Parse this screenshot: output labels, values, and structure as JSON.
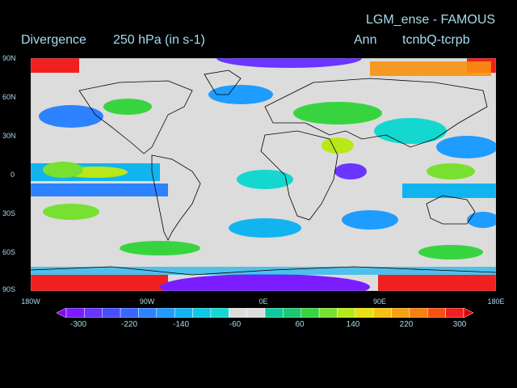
{
  "header": {
    "experiment": "LGM_ense - FAMOUS",
    "variable": "Divergence",
    "level": "250 hPa  (in s-1)",
    "period": "Ann",
    "run_diff": "tcnbQ-tcrpb"
  },
  "axes": {
    "lat_labels": [
      "90N",
      "60N",
      "30N",
      "0",
      "30S",
      "60S",
      "90S"
    ],
    "lon_labels": [
      "180W",
      "90W",
      "0E",
      "90E",
      "180E"
    ]
  },
  "colorbar": {
    "tick_labels": [
      "-300",
      "-220",
      "-140",
      "-60",
      "60",
      "140",
      "220",
      "300"
    ],
    "colors": [
      "#8a00ff",
      "#7a1cff",
      "#6a35ff",
      "#4a4cff",
      "#3a66ff",
      "#2d82ff",
      "#1e9cff",
      "#12b4f0",
      "#0ec8e6",
      "#14d8d0",
      "#dcdcdc",
      "#dcdcdc",
      "#10c8a0",
      "#1cc870",
      "#38d440",
      "#78e030",
      "#b8e818",
      "#e8e010",
      "#f8c010",
      "#f8a010",
      "#f88010",
      "#f85010",
      "#f02020",
      "#e00000"
    ],
    "neutral_color": "#dcdcdc"
  },
  "map": {
    "projection": "cylindrical",
    "lon_range": [
      -180,
      180
    ],
    "lat_range": [
      -90,
      90
    ],
    "background_color": "#dcdcdc",
    "coastline_color": "#000000"
  }
}
